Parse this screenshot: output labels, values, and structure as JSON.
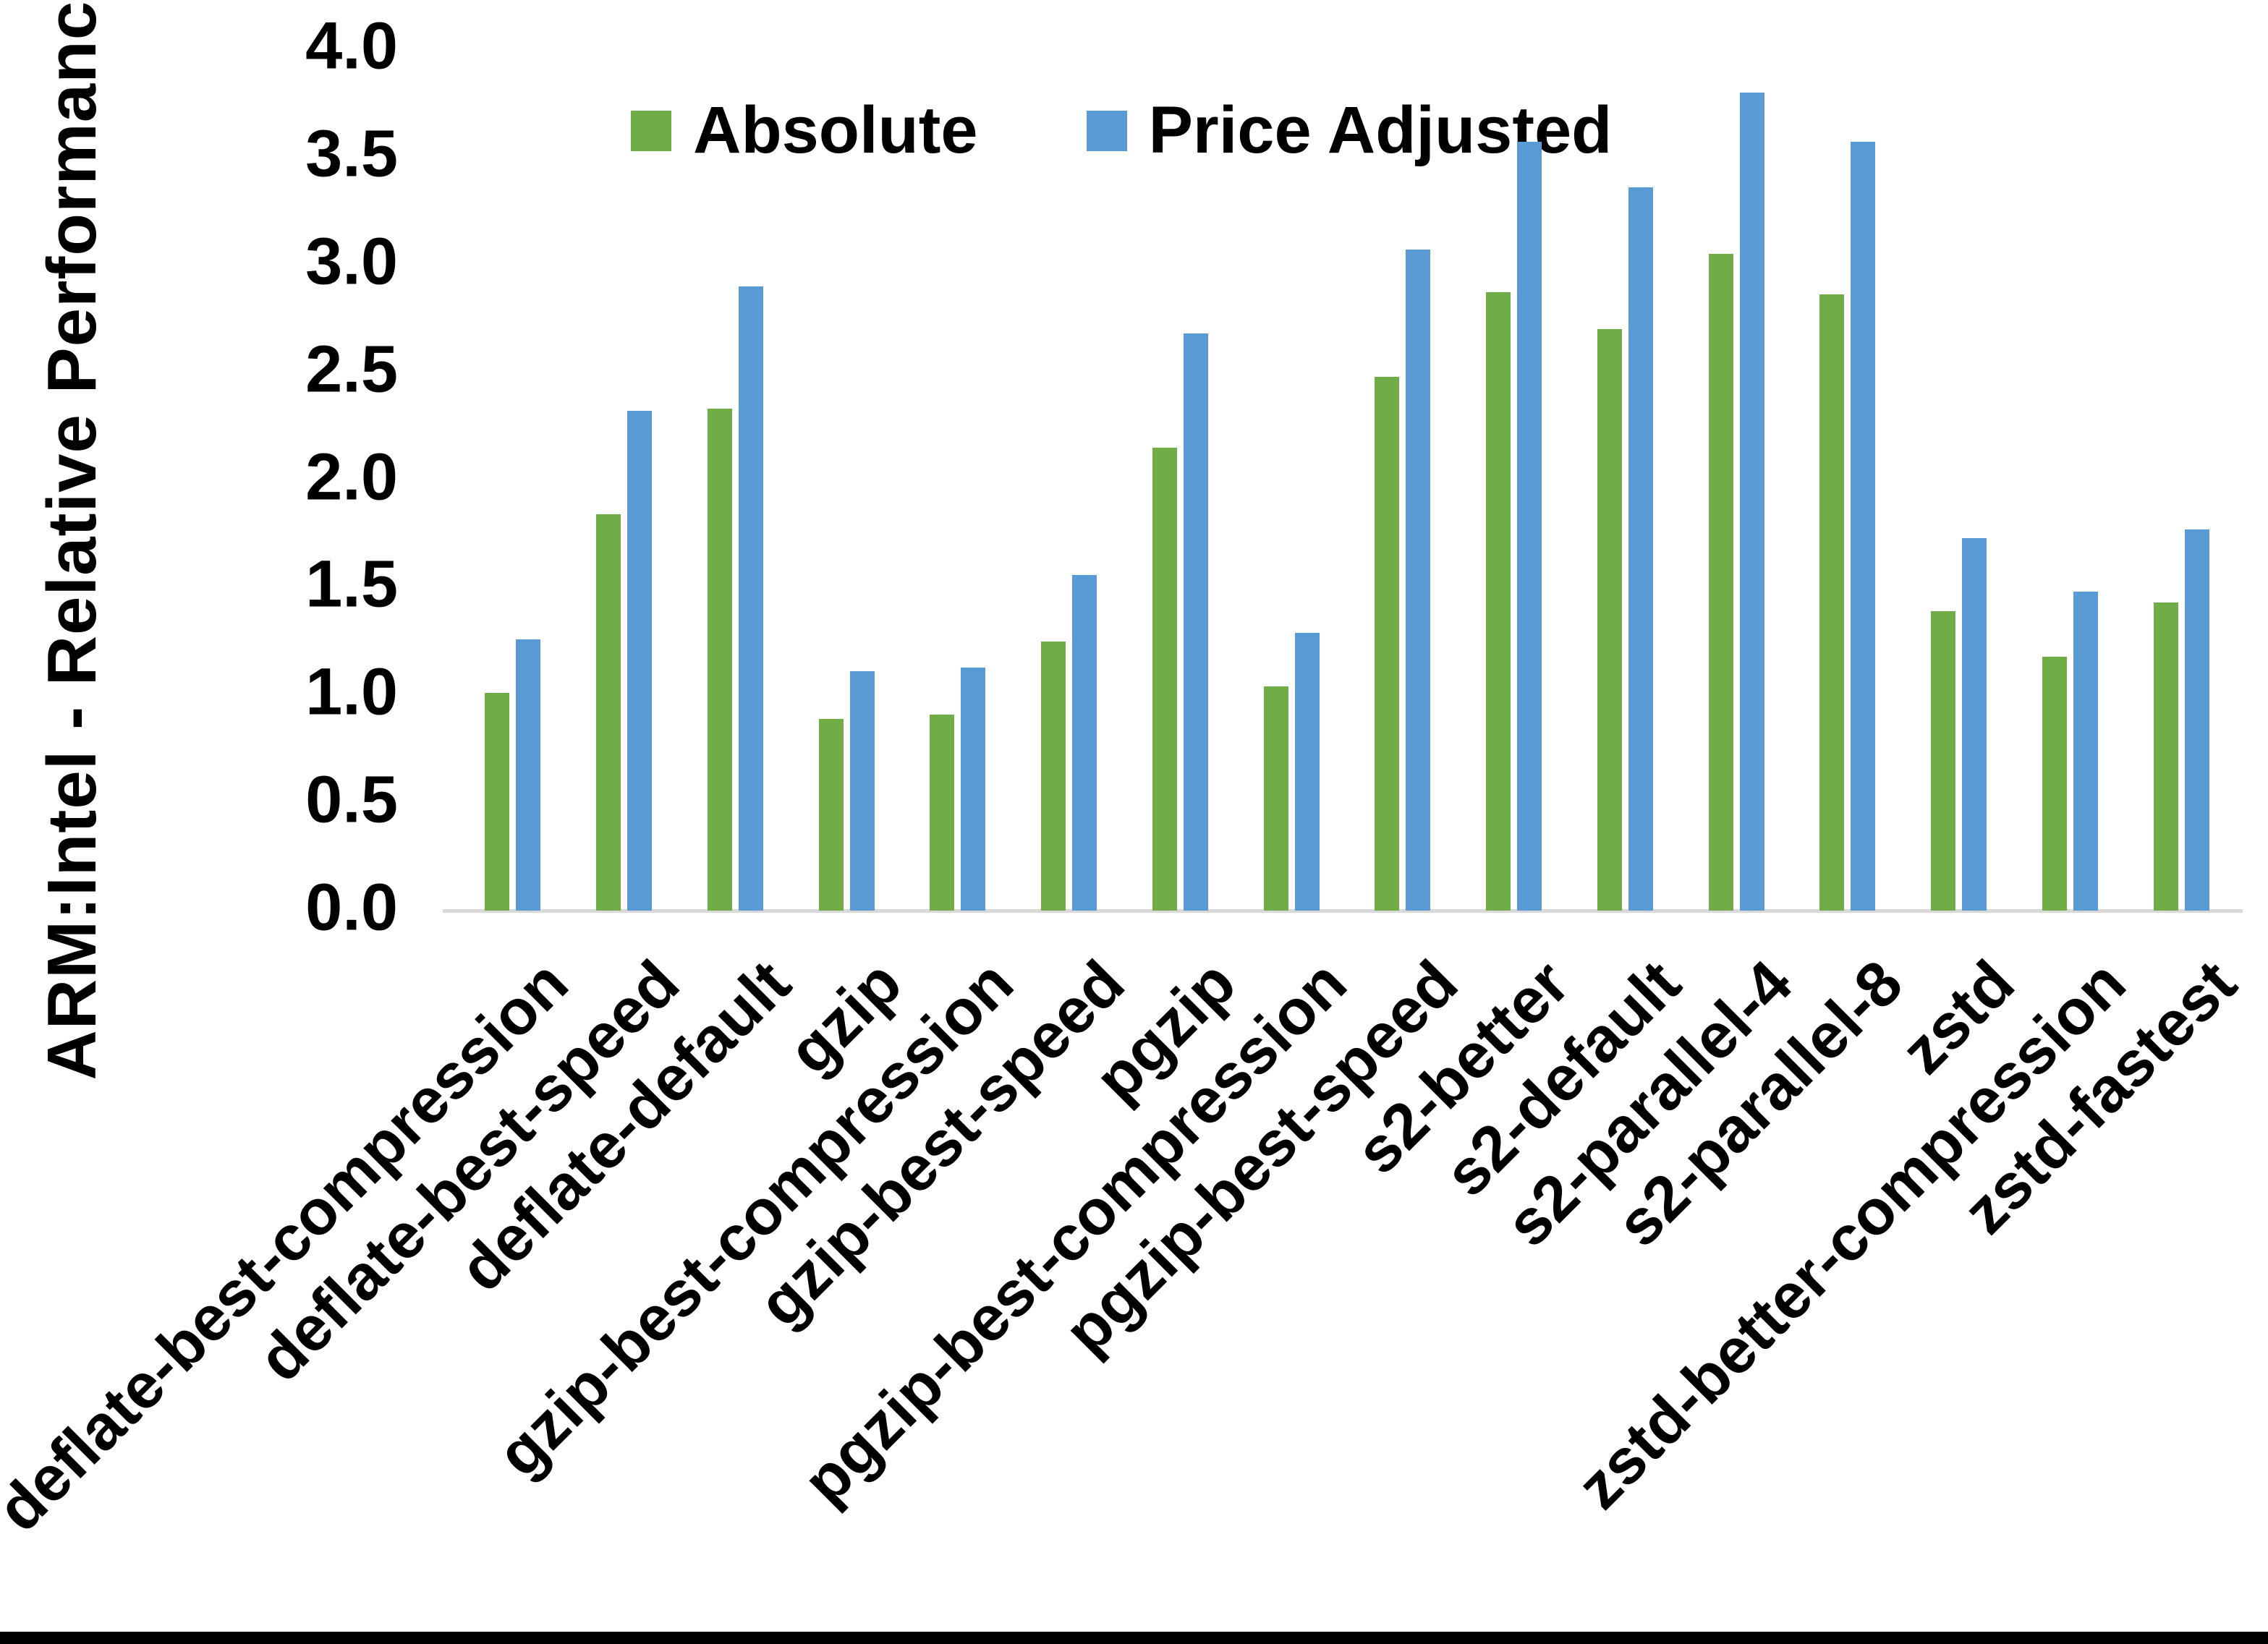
{
  "y_axis": {
    "title": "ARM:Intel - Relative Performance",
    "tick_labels": [
      "4.0",
      "3.5",
      "3.0",
      "2.5",
      "2.0",
      "1.5",
      "1.0",
      "0.5",
      "0.0"
    ],
    "min": 0.0,
    "max": 4.0,
    "step": 0.5
  },
  "chart_data": {
    "type": "bar",
    "title": "",
    "xlabel": "",
    "ylabel": "ARM:Intel - Relative Performance",
    "ylim": [
      0.0,
      4.0
    ],
    "ytick_step": 0.5,
    "grid": false,
    "legend_position": "top",
    "categories": [
      "deflate-best-compression",
      "deflate-best-speed",
      "deflate-default",
      "gzip",
      "gzip-best-compression",
      "gzip-best-speed",
      "pgzip",
      "pgzip-best-compression",
      "pgzip-best-speed",
      "s2-better",
      "s2-default",
      "s2-parallel-4",
      "s2-parallel-8",
      "zstd",
      "zstd-better-compression",
      "zstd-fastest"
    ],
    "series": [
      {
        "name": "Absolute",
        "color": "#70AD47",
        "values": [
          1.01,
          1.84,
          2.33,
          0.89,
          0.91,
          1.25,
          2.15,
          1.04,
          2.48,
          2.87,
          2.7,
          3.05,
          2.86,
          1.39,
          1.18,
          1.43
        ]
      },
      {
        "name": "Price Adjusted",
        "color": "#5B9BD5",
        "values": [
          1.26,
          2.32,
          2.9,
          1.11,
          1.13,
          1.56,
          2.68,
          1.29,
          3.07,
          3.57,
          3.36,
          3.8,
          3.57,
          1.73,
          1.48,
          1.77
        ]
      }
    ]
  },
  "colors": {
    "background": "#FFFFFF",
    "axis_line": "#D8D8D8",
    "text": "#000000",
    "bottom_border": "#000000"
  }
}
